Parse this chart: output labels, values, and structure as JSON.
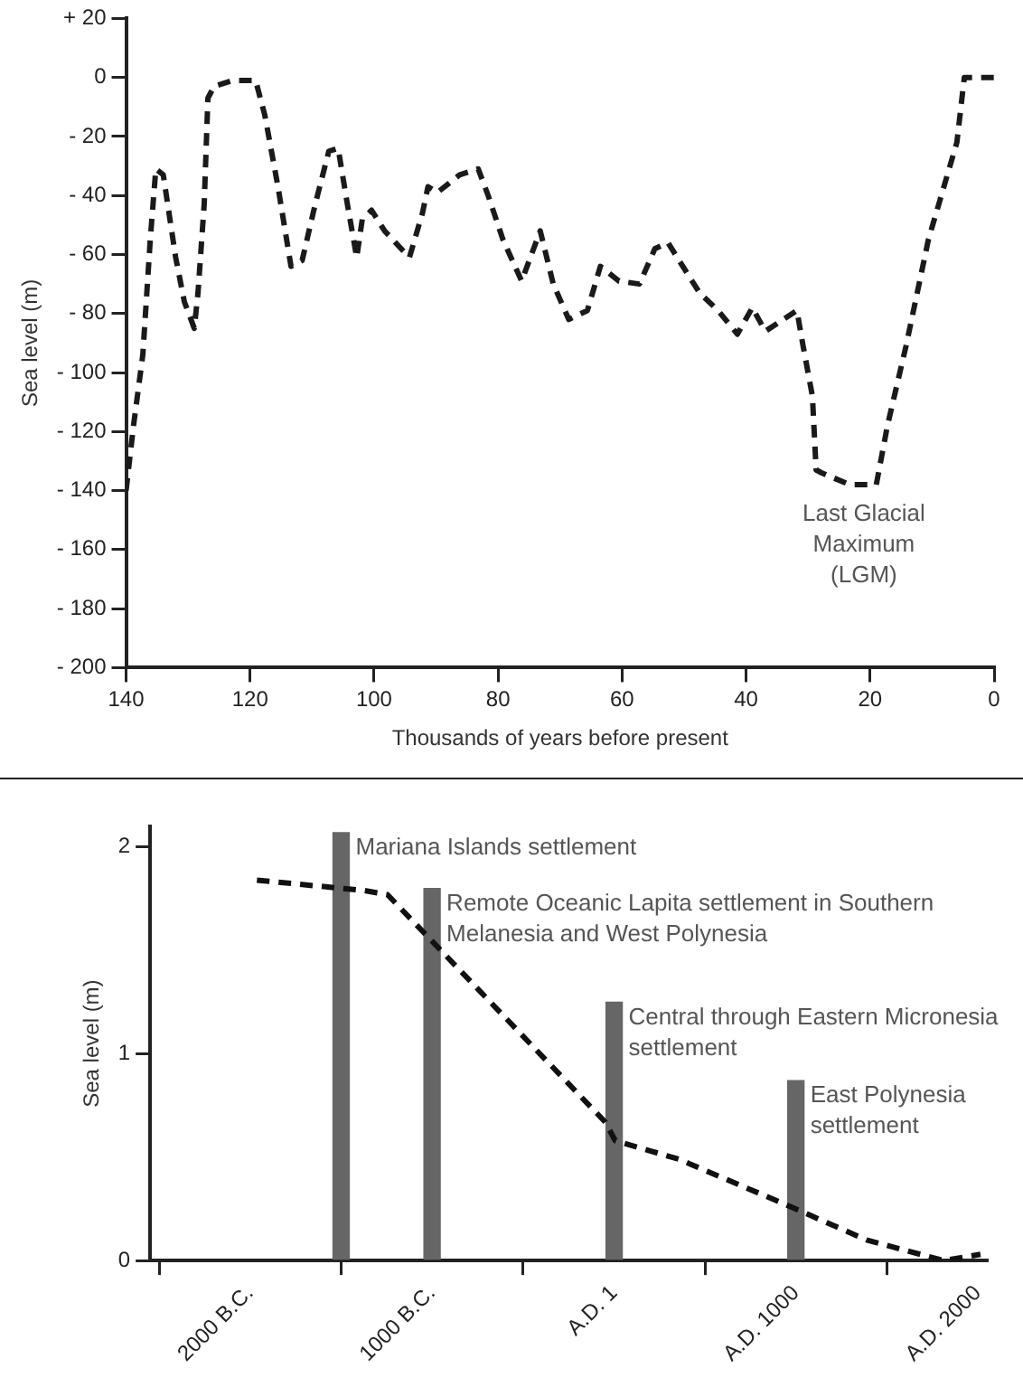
{
  "chart_data": [
    {
      "type": "line",
      "xlabel": "Thousands of years before present",
      "ylabel": "Sea level (m)",
      "xlim": [
        140,
        0
      ],
      "xticks": [
        140,
        120,
        100,
        80,
        60,
        40,
        20,
        0
      ],
      "ylim": [
        -200,
        20
      ],
      "yticks": [
        {
          "value": 20,
          "label": "+ 20"
        },
        0,
        {
          "value": -20,
          "label": "- 20"
        },
        {
          "value": -40,
          "label": "- 40"
        },
        {
          "value": -60,
          "label": "- 60"
        },
        {
          "value": -80,
          "label": "- 80"
        },
        {
          "value": -100,
          "label": "- 100"
        },
        {
          "value": -120,
          "label": "- 120"
        },
        {
          "value": -140,
          "label": "- 140"
        },
        {
          "value": -160,
          "label": "- 160"
        },
        {
          "value": -180,
          "label": "- 180"
        },
        {
          "value": -200,
          "label": "- 200"
        }
      ],
      "grid": false,
      "marker": "none",
      "line_style": "dashed",
      "series": [
        {
          "color": "#1a1a1a",
          "x": [
            140,
            138.8,
            137.3,
            136.1,
            135.2,
            134,
            132,
            130.6,
            129,
            128.4,
            127.4,
            126.8,
            125.8,
            122.8,
            119.1,
            117.6,
            115.5,
            113.4,
            111.6,
            109.5,
            107.3,
            105.8,
            104.3,
            102.8,
            101.9,
            100.4,
            98.3,
            94.3,
            92.2,
            91.3,
            89.8,
            86.2,
            83.2,
            81.6,
            79.2,
            76.2,
            73.2,
            71.1,
            68.6,
            65.6,
            63.5,
            60.5,
            57.2,
            54.7,
            52.6,
            51.1,
            47.5,
            44.5,
            41.4,
            39,
            36.9,
            31.8,
            30.8,
            29.3,
            28.7,
            27.8,
            23.3,
            19,
            17.2,
            14.2,
            10.6,
            6,
            4.8,
            0
          ],
          "values": [
            -140,
            -118,
            -94,
            -55,
            -31,
            -33,
            -61,
            -76,
            -85,
            -73,
            -43,
            -7,
            -3,
            -1,
            -1,
            -13,
            -37,
            -64,
            -62,
            -43,
            -25,
            -24,
            -43,
            -61,
            -48,
            -45,
            -52,
            -61,
            -46,
            -37,
            -39,
            -33,
            -31,
            -40,
            -55,
            -69,
            -52,
            -70,
            -82,
            -79,
            -64,
            -69,
            -70,
            -58,
            -56,
            -61,
            -73,
            -79,
            -87,
            -78,
            -86,
            -79,
            -91,
            -108,
            -133,
            -134,
            -138,
            -138,
            -118,
            -91,
            -55,
            -22,
            0,
            0
          ]
        }
      ],
      "annotations": [
        {
          "text": "Last Glacial Maximum (LGM)",
          "x": 21,
          "y": -138
        }
      ]
    },
    {
      "type": "bar",
      "ylabel": "Sea level (m)",
      "xlim": [
        -2550,
        2050
      ],
      "xticks": [
        {
          "value": -2000,
          "label": "2000 B.C."
        },
        {
          "value": -1000,
          "label": "1000 B.C."
        },
        {
          "value": 1,
          "label": "A.D. 1"
        },
        {
          "value": 1000,
          "label": "A.D. 1000"
        },
        {
          "value": 2000,
          "label": "A.D. 2000"
        }
      ],
      "ylim": [
        0,
        2.1
      ],
      "yticks": [
        0,
        1,
        2
      ],
      "grid": false,
      "series": [
        {
          "type": "bar",
          "color": "#666666",
          "x": [
            -1500,
            -1000,
            1,
            1000
          ],
          "values": [
            2.07,
            1.8,
            1.25,
            0.87
          ]
        },
        {
          "type": "line",
          "color": "#111111",
          "line_style": "dashed",
          "marker": "none",
          "x": [
            -1963,
            -1374,
            -1245,
            -48,
            7,
            357,
            947,
            1388,
            1812,
            2015
          ],
          "values": [
            1.84,
            1.79,
            1.77,
            0.67,
            0.58,
            0.49,
            0.27,
            0.1,
            0,
            0.03
          ]
        }
      ],
      "annotations": [
        {
          "text": "Mariana Islands settlement",
          "x": -1500,
          "y": 2.07
        },
        {
          "text": "Remote Oceanic Lapita settlement in Southern Melanesia and West Polynesia",
          "x": -1000,
          "y": 1.8
        },
        {
          "text": "Central through Eastern Micronesia settlement",
          "x": 1,
          "y": 1.25
        },
        {
          "text": "East Polynesia settlement",
          "x": 1000,
          "y": 0.87
        }
      ]
    }
  ]
}
